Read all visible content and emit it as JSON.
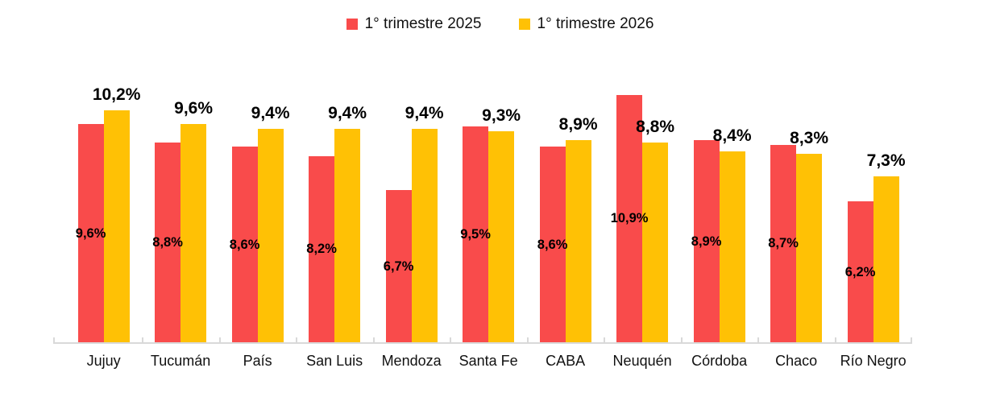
{
  "legend": {
    "items": [
      {
        "label": "1° trimestre 2025",
        "color": "#f94b4b"
      },
      {
        "label": "1° trimestre 2026",
        "color": "#ffc105"
      }
    ]
  },
  "chart_data": {
    "type": "bar",
    "title": "",
    "xlabel": "",
    "ylabel": "",
    "value_format": "percent-decimal-comma",
    "grid": false,
    "legend_position": "top-center",
    "axis_color": "#d9d9d9",
    "label_color": "#000000",
    "ylim": [
      0,
      11.7
    ],
    "categories": [
      "Jujuy",
      "Tucumán",
      "País",
      "San Luis",
      "Mendoza",
      "Santa Fe",
      "CABA",
      "Neuquén",
      "Córdoba",
      "Chaco",
      "Río Negro"
    ],
    "series": [
      {
        "name": "1° trimestre 2025",
        "color": "#f94b4b",
        "label_position": "inside-middle",
        "values": [
          9.6,
          8.8,
          8.6,
          8.2,
          6.7,
          9.5,
          8.6,
          10.9,
          8.9,
          8.7,
          6.2
        ],
        "labels": [
          "9,6%",
          "8,8%",
          "8,6%",
          "8,2%",
          "6,7%",
          "9,5%",
          "8,6%",
          "10,9%",
          "8,9%",
          "8,7%",
          "6,2%"
        ]
      },
      {
        "name": "1° trimestre 2026",
        "color": "#ffc105",
        "label_position": "above-bar",
        "values": [
          10.2,
          9.6,
          9.4,
          9.4,
          9.4,
          9.3,
          8.9,
          8.8,
          8.4,
          8.3,
          7.3
        ],
        "labels": [
          "10,2%",
          "9,6%",
          "9,4%",
          "9,4%",
          "9,4%",
          "9,3%",
          "8,9%",
          "8,8%",
          "8,4%",
          "8,3%",
          "7,3%"
        ]
      }
    ]
  }
}
